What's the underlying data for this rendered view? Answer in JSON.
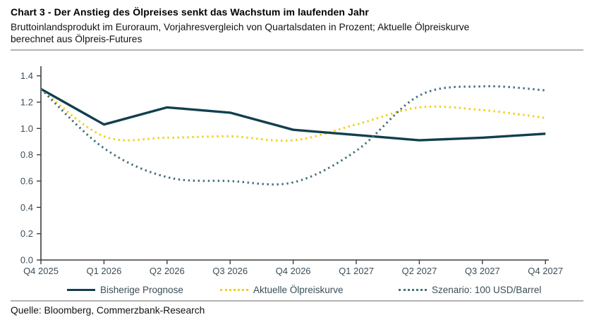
{
  "header": {
    "title": "Chart 3 - Der Anstieg des Ölpreises senkt das Wachstum im laufenden Jahr",
    "subtitle": "Bruttoinlandsprodukt im Euroraum, Vorjahresvergleich von Quartalsdaten in Prozent; Aktuelle Ölpreiskurve berechnet aus Ölpreis-Futures"
  },
  "chart_data": {
    "type": "line",
    "title": "",
    "xlabel": "",
    "ylabel": "",
    "grid": false,
    "legend_position": "bottom",
    "ylim": [
      0,
      1.4
    ],
    "ytick_step": 0.2,
    "categories": [
      "Q4 2025",
      "Q1 2026",
      "Q2 2026",
      "Q3 2026",
      "Q4 2026",
      "Q1 2027",
      "Q2 2027",
      "Q3 2027",
      "Q4 2027"
    ],
    "series": [
      {
        "name": "Bisherige Prognose",
        "color": "#123f4f",
        "line_style": "solid",
        "smooth": false,
        "values": [
          1.3,
          1.03,
          1.16,
          1.12,
          0.99,
          0.95,
          0.91,
          0.93,
          0.96
        ]
      },
      {
        "name": "Aktuelle Ölpreiskurve",
        "color": "#f1d117",
        "line_style": "dotted",
        "smooth": true,
        "values": [
          1.3,
          0.94,
          0.93,
          0.94,
          0.91,
          1.03,
          1.16,
          1.14,
          1.08
        ]
      },
      {
        "name": "Szenario: 100 USD/Barrel",
        "color": "#44707e",
        "line_style": "dotted",
        "smooth": true,
        "values": [
          1.3,
          0.85,
          0.63,
          0.6,
          0.59,
          0.83,
          1.25,
          1.32,
          1.29
        ]
      }
    ]
  },
  "source": {
    "label": "Quelle: Bloomberg, Commerzbank-Research"
  },
  "colors": {
    "axis": "#3f3f3f",
    "axis_text": "#3b4d58",
    "divider": "#b2b2b2"
  }
}
